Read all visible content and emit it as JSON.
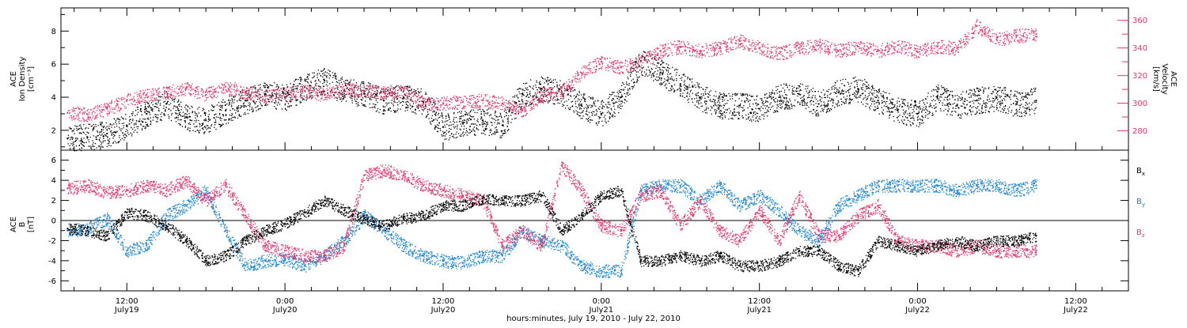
{
  "colors": {
    "black": "#000000",
    "pink": "#e8336b",
    "blue": "#1a84d8",
    "grid": "#000000"
  },
  "x_axis": {
    "title": "hours:minutes, July 19, 2010 - July 22, 2010",
    "ticks": [
      {
        "hour": 12,
        "time": "12:00",
        "date": "July19"
      },
      {
        "hour": 24,
        "time": "0:00",
        "date": "July20"
      },
      {
        "hour": 36,
        "time": "12:00",
        "date": "July20"
      },
      {
        "hour": 48,
        "time": "0:00",
        "date": "July21"
      },
      {
        "hour": 60,
        "time": "12:00",
        "date": "July21"
      },
      {
        "hour": 72,
        "time": "0:00",
        "date": "July22"
      },
      {
        "hour": 84,
        "time": "12:00",
        "date": "July22"
      }
    ]
  },
  "chart_data": [
    {
      "type": "scatter",
      "panel": "top",
      "ylabel_left": [
        "ACE",
        "Ion Density",
        "[cm⁻³]"
      ],
      "ylabel_right": [
        "ACE",
        "Velocity",
        "[km/s]"
      ],
      "xlim_hours": [
        7,
        88
      ],
      "ylim_left": [
        0.8,
        9.4
      ],
      "ylim_right": [
        266,
        369
      ],
      "yticks_left": [
        2,
        4,
        6,
        8
      ],
      "yticks_right": [
        280,
        290,
        300,
        310,
        320,
        330,
        340,
        350,
        360
      ],
      "yticklabels_right": [
        280,
        300,
        320,
        340,
        360
      ],
      "series": [
        {
          "name": "Ion Density",
          "color": "black",
          "axis": "left",
          "x_hours": [
            7.5,
            9,
            10.5,
            12,
            13.5,
            15,
            16.5,
            18,
            19.5,
            21,
            22.5,
            24,
            25.5,
            27,
            28.5,
            30,
            31.5,
            33,
            34.5,
            36,
            37.5,
            39,
            40.5,
            42,
            43.5,
            45,
            46.5,
            48,
            49.5,
            51,
            52.5,
            54,
            55.5,
            57,
            58.5,
            60,
            61.5,
            63,
            64.5,
            66,
            67.5,
            69,
            70.5,
            72,
            73.5,
            75,
            76.5,
            78,
            79.5,
            81
          ],
          "values": [
            1.5,
            1.6,
            1.8,
            2.3,
            3.0,
            3.6,
            2.8,
            2.6,
            3.2,
            3.8,
            4.2,
            4.0,
            4.6,
            5.0,
            4.4,
            4.2,
            3.8,
            4.0,
            3.7,
            2.2,
            2.4,
            2.6,
            2.3,
            4.2,
            4.5,
            4.3,
            3.5,
            3.0,
            4.0,
            6.2,
            5.5,
            4.8,
            4.0,
            3.5,
            3.5,
            3.3,
            4.0,
            4.2,
            3.6,
            4.3,
            4.5,
            3.8,
            3.2,
            3.0,
            4.0,
            3.5,
            3.8,
            4.0,
            3.6,
            3.8
          ]
        },
        {
          "name": "Velocity",
          "color": "pink",
          "axis": "right",
          "x_hours": [
            7.5,
            9,
            10.5,
            12,
            13.5,
            15,
            16.5,
            18,
            19.5,
            21,
            22.5,
            24,
            25.5,
            27,
            28.5,
            30,
            31.5,
            33,
            34.5,
            36,
            37.5,
            39,
            40.5,
            42,
            43.5,
            45,
            46.5,
            48,
            49.5,
            51,
            52.5,
            54,
            55.5,
            57,
            58.5,
            60,
            61.5,
            63,
            64.5,
            66,
            67.5,
            69,
            70.5,
            72,
            73.5,
            75,
            76.5,
            78,
            79.5,
            81
          ],
          "values": [
            293,
            292,
            296,
            302,
            306,
            308,
            311,
            306,
            312,
            308,
            305,
            307,
            309,
            306,
            310,
            309,
            308,
            309,
            300,
            300,
            301,
            302,
            300,
            295,
            306,
            308,
            322,
            330,
            326,
            330,
            338,
            341,
            338,
            340,
            345,
            340,
            336,
            340,
            342,
            338,
            341,
            338,
            342,
            337,
            341,
            340,
            356,
            346,
            349,
            350
          ]
        }
      ]
    },
    {
      "type": "scatter",
      "panel": "bottom",
      "ylabel_left": [
        "ACE",
        "B",
        "[nT]"
      ],
      "xlim_hours": [
        7,
        88
      ],
      "ylim": [
        -7,
        7
      ],
      "yticks": [
        -6,
        -4,
        -2,
        0,
        2,
        4,
        6
      ],
      "zero_line": true,
      "legend_position": "right",
      "series": [
        {
          "name": "Bx",
          "label_main": "B",
          "label_sub": "x",
          "color": "black",
          "x_hours": [
            7.5,
            9,
            10.5,
            12,
            13.5,
            15,
            16.5,
            18,
            19.5,
            21,
            22.5,
            24,
            25.5,
            27,
            28.5,
            30,
            31.5,
            33,
            34.5,
            36,
            37.5,
            39,
            40.5,
            42,
            43.5,
            45,
            46.5,
            48,
            49.5,
            51,
            52.5,
            54,
            55.5,
            57,
            58.5,
            60,
            61.5,
            63,
            64.5,
            66,
            67.5,
            69,
            70.5,
            72,
            73.5,
            75,
            76.5,
            78,
            79.5,
            81
          ],
          "values": [
            -0.8,
            -1.0,
            -1.5,
            0.8,
            0.5,
            -0.5,
            -2.0,
            -4.0,
            -3.5,
            -2.0,
            -1.0,
            -0.3,
            0.8,
            2.0,
            1.0,
            0.2,
            -0.5,
            0.2,
            0.5,
            1.5,
            1.5,
            2.2,
            2.0,
            2.0,
            2.5,
            -1.0,
            0.5,
            2.5,
            3.0,
            -4.0,
            -4.0,
            -3.5,
            -4.0,
            -3.5,
            -4.5,
            -4.5,
            -4.0,
            -3.0,
            -3.0,
            -4.5,
            -5.0,
            -2.0,
            -2.5,
            -3.0,
            -2.5,
            -2.0,
            -2.5,
            -2.0,
            -2.0,
            -1.5
          ]
        },
        {
          "name": "By",
          "label_main": "B",
          "label_sub": "y",
          "color": "blue",
          "x_hours": [
            7.5,
            9,
            10.5,
            12,
            13.5,
            15,
            16.5,
            18,
            19.5,
            21,
            22.5,
            24,
            25.5,
            27,
            28.5,
            30,
            31.5,
            33,
            34.5,
            36,
            37.5,
            39,
            40.5,
            42,
            43.5,
            45,
            46.5,
            48,
            49.5,
            51,
            52.5,
            54,
            55.5,
            57,
            58.5,
            60,
            61.5,
            63,
            64.5,
            66,
            67.5,
            69,
            70.5,
            72,
            73.5,
            75,
            76.5,
            78,
            79.5,
            81
          ],
          "values": [
            -1.0,
            -0.8,
            0.2,
            -3.0,
            -2.5,
            0.5,
            1.5,
            3.0,
            -1.0,
            -4.5,
            -4.0,
            -3.8,
            -4.5,
            -3.5,
            -2.0,
            0.5,
            -1.0,
            -2.5,
            -3.5,
            -4.0,
            -4.2,
            -3.5,
            -3.5,
            -1.0,
            -2.0,
            -2.5,
            -4.5,
            -5.0,
            -5.0,
            3.0,
            3.5,
            3.5,
            2.0,
            3.5,
            1.5,
            2.5,
            1.0,
            -1.0,
            -2.0,
            1.5,
            2.5,
            3.5,
            3.5,
            3.5,
            3.5,
            3.0,
            3.5,
            3.5,
            3.0,
            3.5
          ]
        },
        {
          "name": "Bz",
          "label_main": "B",
          "label_sub": "z",
          "color": "pink",
          "x_hours": [
            7.5,
            9,
            10.5,
            12,
            13.5,
            15,
            16.5,
            18,
            19.5,
            21,
            22.5,
            24,
            25.5,
            27,
            28.5,
            30,
            31.5,
            33,
            34.5,
            36,
            37.5,
            39,
            40.5,
            42,
            43.5,
            45,
            46.5,
            48,
            49.5,
            51,
            52.5,
            54,
            55.5,
            57,
            58.5,
            60,
            61.5,
            63,
            64.5,
            66,
            67.5,
            69,
            70.5,
            72,
            73.5,
            75,
            76.5,
            78,
            79.5,
            81
          ],
          "values": [
            3.2,
            3.5,
            2.8,
            3.0,
            3.5,
            3.0,
            4.0,
            2.0,
            3.5,
            0.5,
            -2.5,
            -3.0,
            -3.5,
            -3.5,
            -2.5,
            4.5,
            5.0,
            4.5,
            3.5,
            3.0,
            2.5,
            2.0,
            -2.5,
            -1.0,
            -2.5,
            5.5,
            3.0,
            -0.5,
            -1.0,
            2.5,
            3.0,
            -0.5,
            2.0,
            -1.0,
            -2.0,
            1.0,
            -2.0,
            2.5,
            -1.5,
            -1.5,
            0.5,
            1.5,
            -2.0,
            -2.5,
            -2.5,
            -3.0,
            -2.5,
            -3.0,
            -3.0,
            -3.0
          ]
        }
      ]
    }
  ]
}
